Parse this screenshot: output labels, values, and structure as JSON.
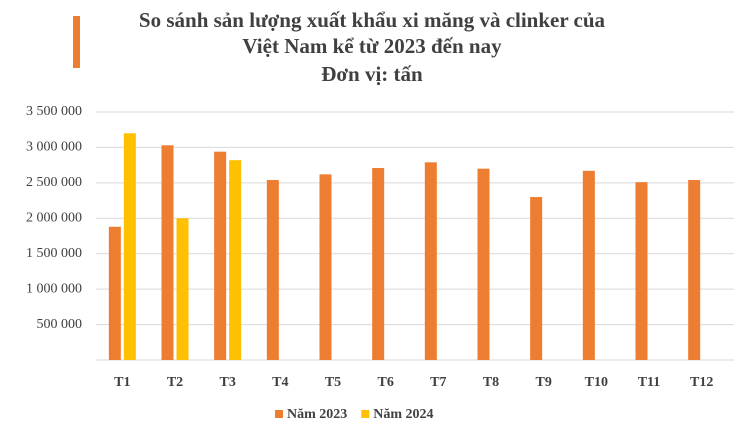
{
  "chart_data": {
    "type": "bar",
    "title": [
      "So sánh sản lượng xuất khẩu xi măng và clinker của",
      "Việt Nam kể từ 2023 đến nay"
    ],
    "subtitle": "Đơn vị: tấn",
    "categories": [
      "T1",
      "T2",
      "T3",
      "T4",
      "T5",
      "T6",
      "T7",
      "T8",
      "T9",
      "T10",
      "T11",
      "T12"
    ],
    "series": [
      {
        "name": "Năm 2023",
        "color": "#ED7D31",
        "values": [
          1880000,
          3030000,
          2940000,
          2540000,
          2620000,
          2710000,
          2790000,
          2700000,
          2300000,
          2670000,
          2510000,
          2540000
        ]
      },
      {
        "name": "Năm 2024",
        "color": "#FFC000",
        "values": [
          3200000,
          2000000,
          2820000,
          null,
          null,
          null,
          null,
          null,
          null,
          null,
          null,
          null
        ]
      }
    ],
    "ylim": [
      0,
      3500000
    ],
    "yticks": [
      {
        "value": 500000,
        "label": "500 000"
      },
      {
        "value": 1000000,
        "label": "1 000 000"
      },
      {
        "value": 1500000,
        "label": "1 500 000"
      },
      {
        "value": 2000000,
        "label": "2 000 000"
      },
      {
        "value": 2500000,
        "label": "2 500 000"
      },
      {
        "value": 3000000,
        "label": "3 000 000"
      },
      {
        "value": 3500000,
        "label": "3 500 000"
      }
    ],
    "grid": true,
    "legend": "bottom"
  }
}
